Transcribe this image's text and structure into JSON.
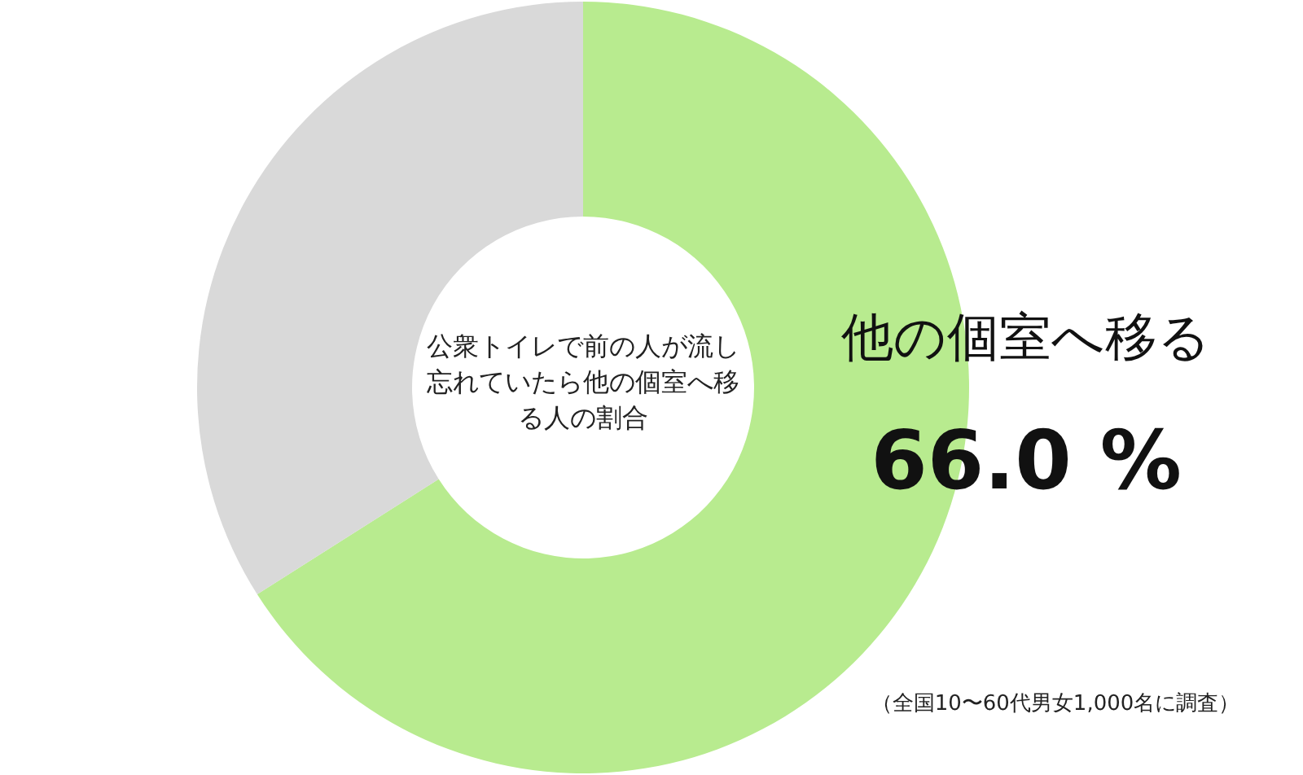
{
  "chart_data": {
    "type": "donut",
    "title": "公衆トイレで前の人が流し忘れていたら他の個室へ移る人の割合",
    "categories": [
      "他の個室へ移る",
      null
    ],
    "values": [
      66.0,
      34.0
    ],
    "colors": [
      "#b8eb8f",
      "#d9d9d9"
    ],
    "value_labels": [
      "66.0 %",
      null
    ],
    "annotations": [
      "（全国10〜60代男女1,000名に調査）"
    ]
  }
}
